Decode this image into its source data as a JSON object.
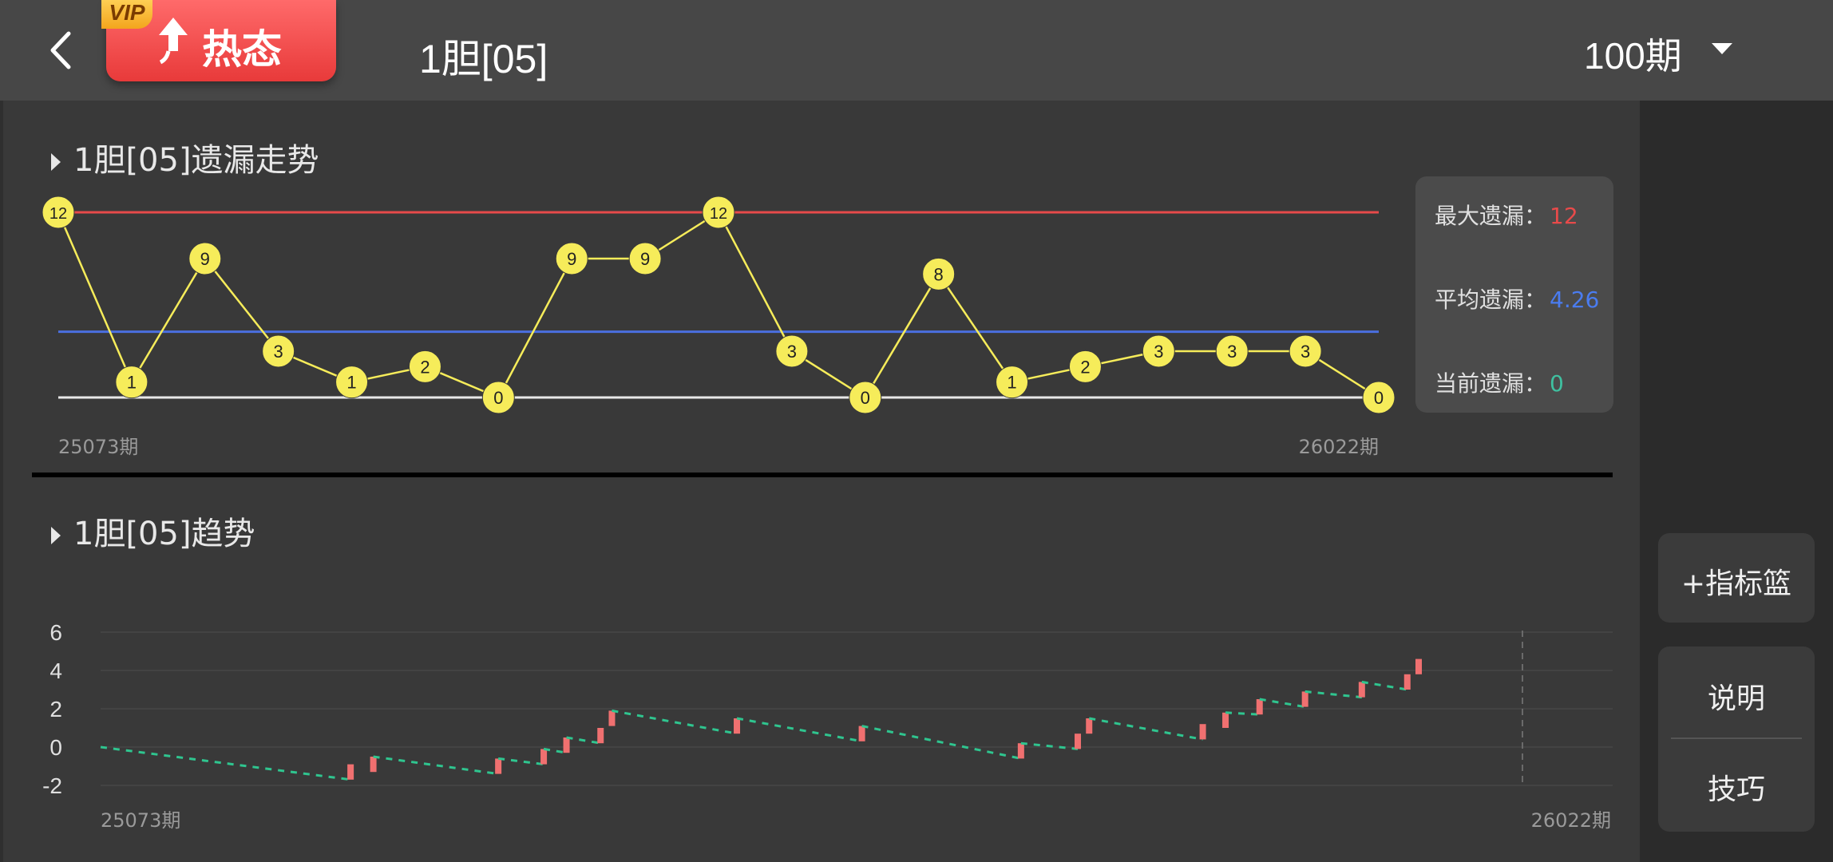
{
  "header": {
    "vip_badge": "VIP",
    "hot_label": "热态",
    "title": "1胆[05]",
    "period": "100期"
  },
  "section1": {
    "title": "1胆[05]遗漏走势",
    "stats": [
      {
        "label": "最大遗漏：",
        "value": "12",
        "color": "#e84a4a"
      },
      {
        "label": "平均遗漏：",
        "value": "4.26",
        "color": "#4a7cf0"
      },
      {
        "label": "当前遗漏：",
        "value": "0",
        "color": "#3fc0a0"
      }
    ]
  },
  "section2": {
    "title": "1胆[05]趋势"
  },
  "sidebar": {
    "basket": "+指标篮",
    "explain": "说明",
    "tips": "技巧"
  },
  "colors": {
    "max_line": "#e84a4a",
    "avg_line": "#4a6fe0",
    "base_line": "#e8e8e8",
    "node_fill": "#f6ec5a",
    "up_bar": "#f07070",
    "trend_dash": "#2fc58f"
  },
  "chart_data": [
    {
      "type": "line",
      "title": "1胆[05]遗漏走势",
      "x_start_label": "25073期",
      "x_end_label": "26022期",
      "values": [
        12,
        1,
        9,
        3,
        1,
        2,
        0,
        9,
        9,
        12,
        3,
        0,
        8,
        1,
        2,
        3,
        3,
        3,
        0
      ],
      "reference_lines": {
        "max": 12,
        "avg": 4.26,
        "base": 0
      },
      "ylim": [
        0,
        12
      ]
    },
    {
      "type": "line",
      "title": "1胆[05]趋势",
      "x_start_label": "25073期",
      "x_end_label": "26022期",
      "yticks": [
        "6",
        "4",
        "2",
        "0",
        "-2"
      ],
      "ylim": [
        -2,
        6
      ],
      "segments": [
        {
          "kind": "down",
          "x": [
            0,
            22
          ],
          "y": [
            0,
            -1.7
          ]
        },
        {
          "kind": "up",
          "x": 22,
          "y": [
            -1.7,
            -0.9
          ]
        },
        {
          "kind": "up",
          "x": 24,
          "y": [
            -1.3,
            -0.5
          ]
        },
        {
          "kind": "down",
          "x": [
            24,
            35
          ],
          "y": [
            -0.5,
            -1.4
          ]
        },
        {
          "kind": "up",
          "x": 35,
          "y": [
            -1.4,
            -0.6
          ]
        },
        {
          "kind": "down",
          "x": [
            35,
            39
          ],
          "y": [
            -0.6,
            -0.9
          ]
        },
        {
          "kind": "up",
          "x": 39,
          "y": [
            -0.9,
            -0.1
          ]
        },
        {
          "kind": "down",
          "x": [
            39,
            41
          ],
          "y": [
            -0.1,
            -0.3
          ]
        },
        {
          "kind": "up",
          "x": 41,
          "y": [
            -0.3,
            0.5
          ]
        },
        {
          "kind": "down",
          "x": [
            41,
            44
          ],
          "y": [
            0.5,
            0.2
          ]
        },
        {
          "kind": "up",
          "x": 44,
          "y": [
            0.2,
            1.0
          ]
        },
        {
          "kind": "up",
          "x": 45,
          "y": [
            1.1,
            1.9
          ]
        },
        {
          "kind": "down",
          "x": [
            45,
            56
          ],
          "y": [
            1.9,
            0.7
          ]
        },
        {
          "kind": "up",
          "x": 56,
          "y": [
            0.7,
            1.5
          ]
        },
        {
          "kind": "down",
          "x": [
            56,
            67
          ],
          "y": [
            1.5,
            0.3
          ]
        },
        {
          "kind": "up",
          "x": 67,
          "y": [
            0.3,
            1.1
          ]
        },
        {
          "kind": "down",
          "x": [
            67,
            81
          ],
          "y": [
            1.1,
            -0.6
          ]
        },
        {
          "kind": "up",
          "x": 81,
          "y": [
            -0.6,
            0.2
          ]
        },
        {
          "kind": "down",
          "x": [
            81,
            86
          ],
          "y": [
            0.2,
            -0.1
          ]
        },
        {
          "kind": "up",
          "x": 86,
          "y": [
            -0.1,
            0.7
          ]
        },
        {
          "kind": "up",
          "x": 87,
          "y": [
            0.7,
            1.5
          ]
        },
        {
          "kind": "down",
          "x": [
            87,
            97
          ],
          "y": [
            1.5,
            0.4
          ]
        },
        {
          "kind": "up",
          "x": 97,
          "y": [
            0.4,
            1.2
          ]
        },
        {
          "kind": "up",
          "x": 99,
          "y": [
            1.0,
            1.8
          ]
        },
        {
          "kind": "down",
          "x": [
            99,
            102
          ],
          "y": [
            1.8,
            1.7
          ]
        },
        {
          "kind": "up",
          "x": 102,
          "y": [
            1.7,
            2.5
          ]
        },
        {
          "kind": "down",
          "x": [
            102,
            106
          ],
          "y": [
            2.5,
            2.1
          ]
        },
        {
          "kind": "up",
          "x": 106,
          "y": [
            2.1,
            2.9
          ]
        },
        {
          "kind": "down",
          "x": [
            106,
            111
          ],
          "y": [
            2.9,
            2.6
          ]
        },
        {
          "kind": "up",
          "x": 111,
          "y": [
            2.6,
            3.4
          ]
        },
        {
          "kind": "down",
          "x": [
            111,
            115
          ],
          "y": [
            3.4,
            3.0
          ]
        },
        {
          "kind": "up",
          "x": 115,
          "y": [
            3.0,
            3.8
          ]
        },
        {
          "kind": "up",
          "x": 116,
          "y": [
            3.8,
            4.6
          ]
        }
      ]
    }
  ]
}
